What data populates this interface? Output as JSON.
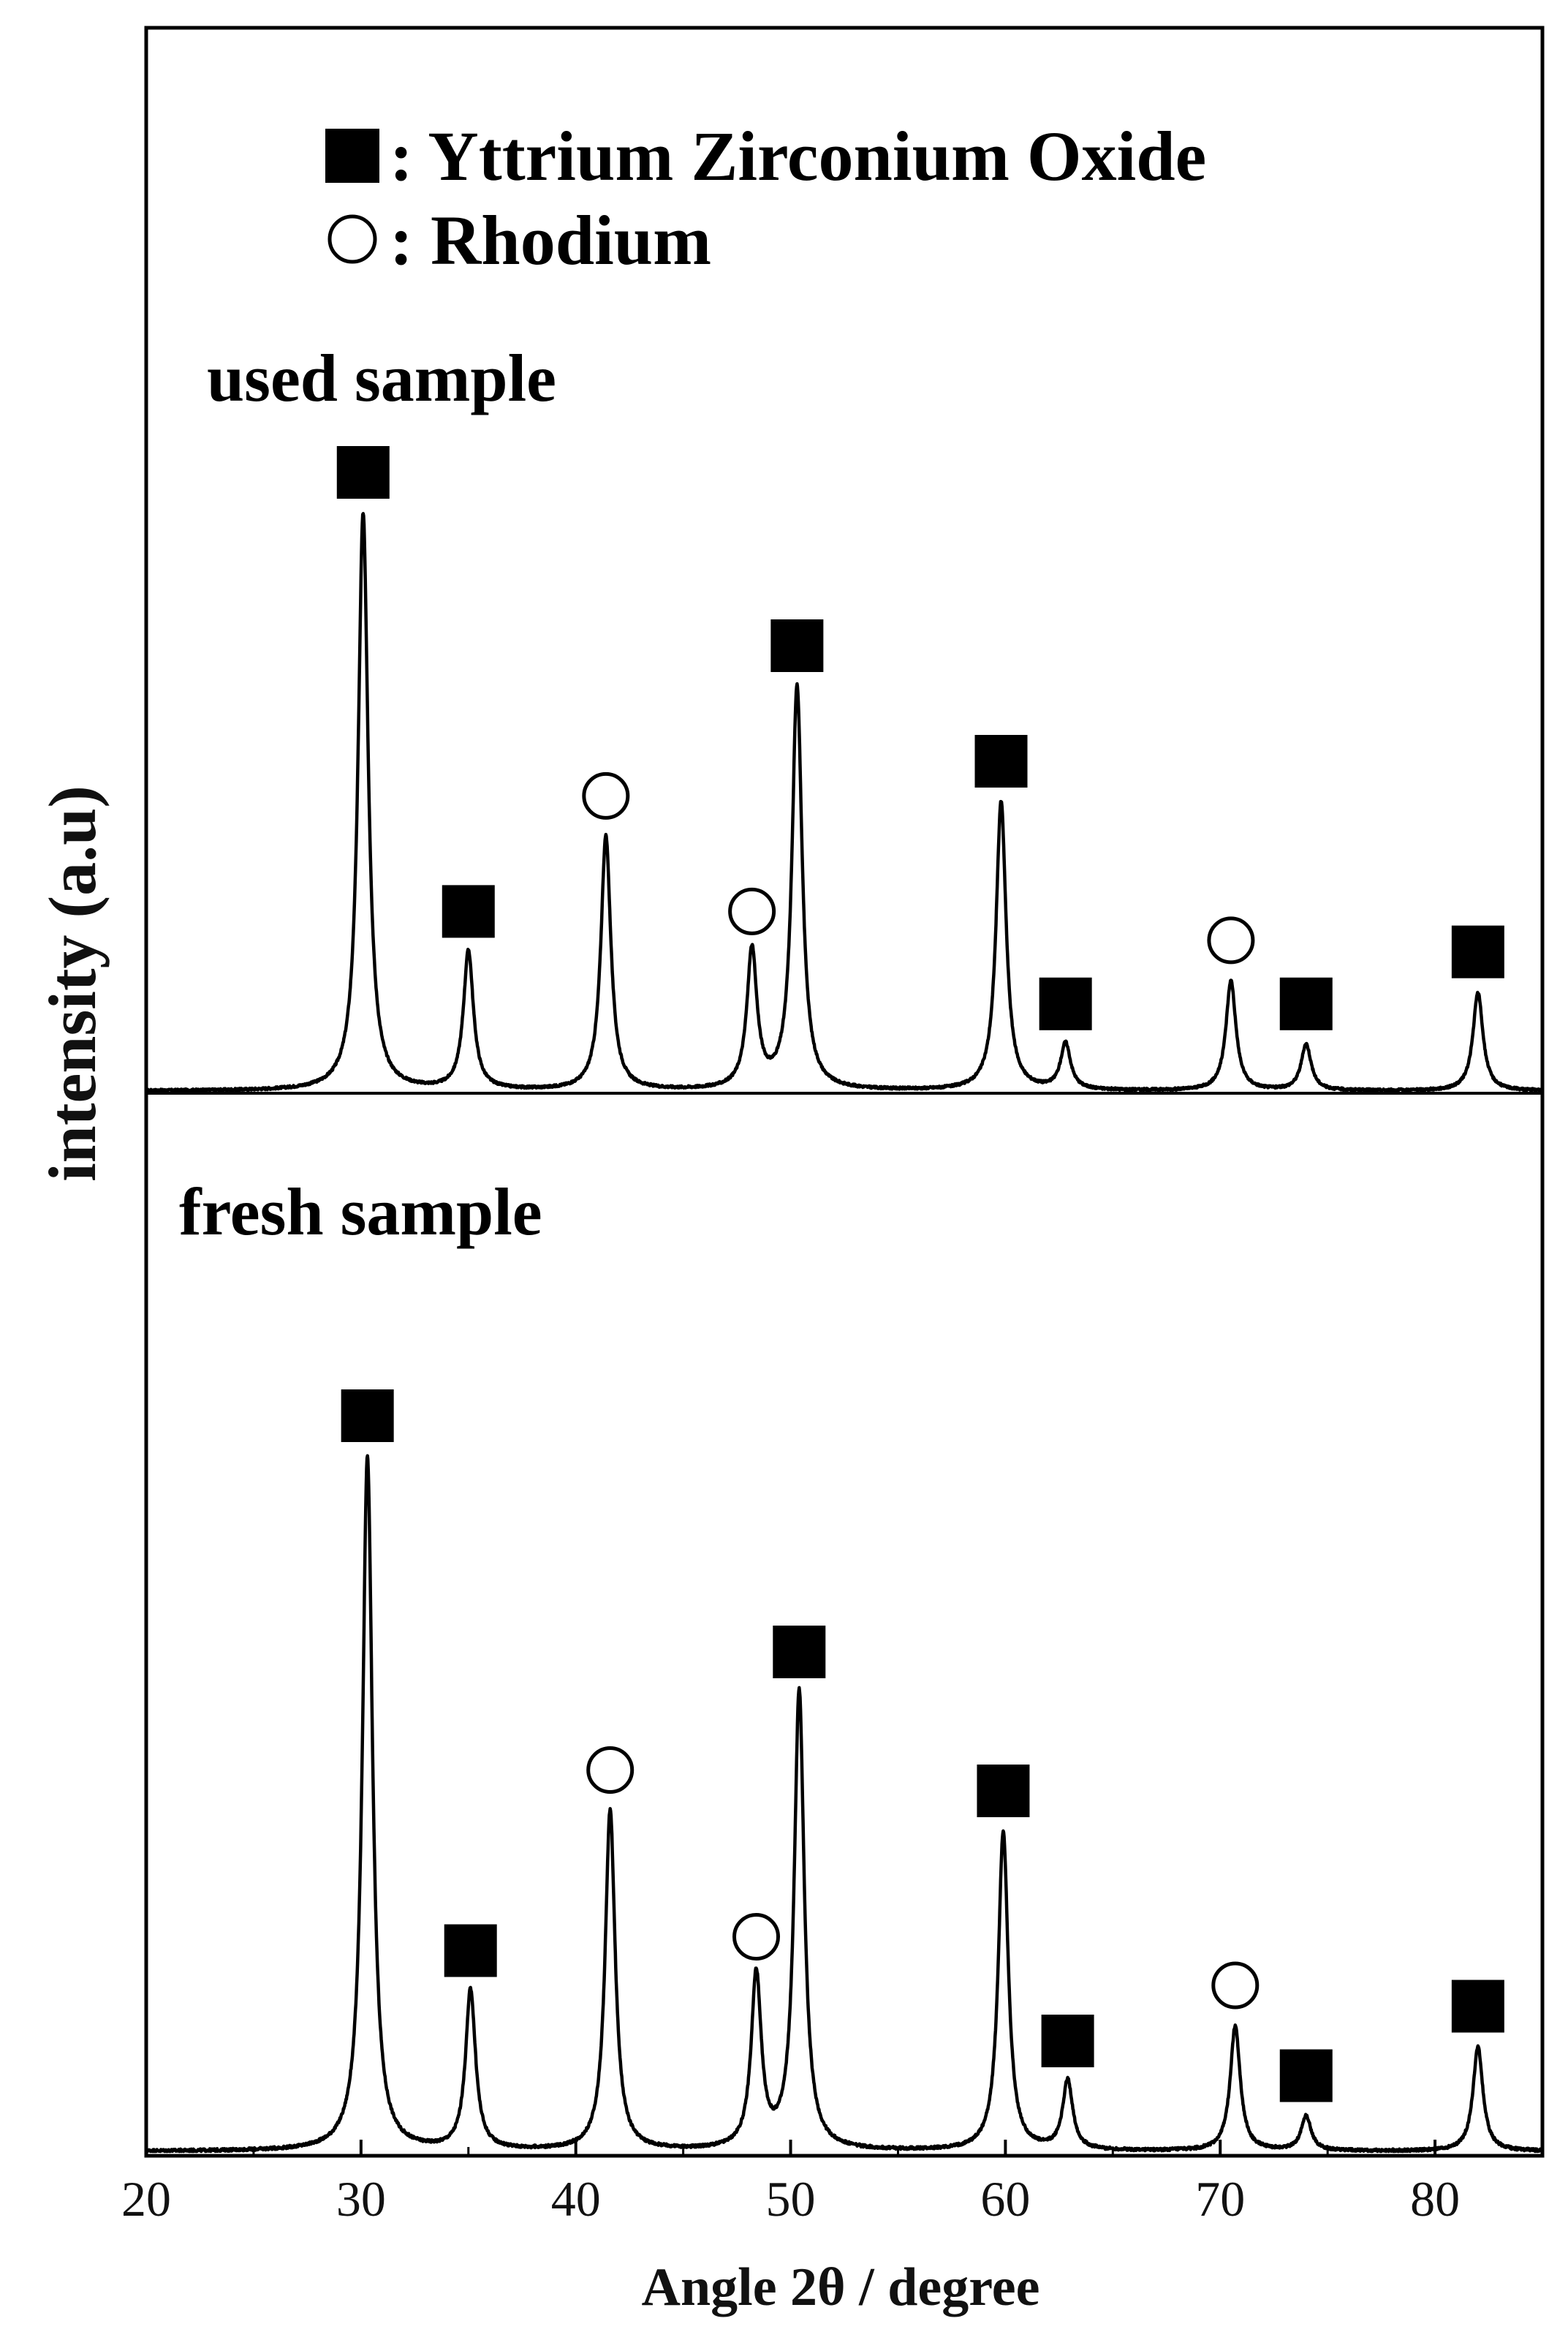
{
  "chart_data": {
    "type": "line",
    "title": "",
    "xlabel": "Angle 2θ / degree",
    "ylabel": "intensity (a.u)",
    "xlim": [
      20,
      85
    ],
    "ylim": [
      0,
      1
    ],
    "xticks": [
      20,
      30,
      40,
      50,
      60,
      70,
      80
    ],
    "grid": false,
    "legend": {
      "placement": "top",
      "entries": [
        {
          "marker": "filled-square",
          "label": ": Yttrium Zirconium Oxide"
        },
        {
          "marker": "open-circle",
          "label": ": Rhodium"
        }
      ]
    },
    "peak_width": 0.28,
    "series": [
      {
        "name": "used sample",
        "label": "used sample",
        "panel": "top",
        "peaks": [
          {
            "x": 30.1,
            "y": 1.0,
            "phase": "Yttrium Zirconium Oxide"
          },
          {
            "x": 35.0,
            "y": 0.24,
            "phase": "Yttrium Zirconium Oxide"
          },
          {
            "x": 41.4,
            "y": 0.44,
            "phase": "Rhodium"
          },
          {
            "x": 48.2,
            "y": 0.24,
            "phase": "Rhodium"
          },
          {
            "x": 50.3,
            "y": 0.7,
            "phase": "Yttrium Zirconium Oxide"
          },
          {
            "x": 59.8,
            "y": 0.5,
            "phase": "Yttrium Zirconium Oxide"
          },
          {
            "x": 62.8,
            "y": 0.08,
            "phase": "Yttrium Zirconium Oxide"
          },
          {
            "x": 70.5,
            "y": 0.19,
            "phase": "Rhodium"
          },
          {
            "x": 74.0,
            "y": 0.08,
            "phase": "Yttrium Zirconium Oxide"
          },
          {
            "x": 82.0,
            "y": 0.17,
            "phase": "Yttrium Zirconium Oxide"
          }
        ]
      },
      {
        "name": "fresh sample",
        "label": "fresh sample",
        "panel": "bottom",
        "peaks": [
          {
            "x": 30.3,
            "y": 1.0,
            "phase": "Yttrium Zirconium Oxide"
          },
          {
            "x": 35.1,
            "y": 0.23,
            "phase": "Yttrium Zirconium Oxide"
          },
          {
            "x": 41.6,
            "y": 0.49,
            "phase": "Rhodium"
          },
          {
            "x": 48.4,
            "y": 0.25,
            "phase": "Rhodium"
          },
          {
            "x": 50.4,
            "y": 0.66,
            "phase": "Yttrium Zirconium Oxide"
          },
          {
            "x": 59.9,
            "y": 0.46,
            "phase": "Yttrium Zirconium Oxide"
          },
          {
            "x": 62.9,
            "y": 0.1,
            "phase": "Yttrium Zirconium Oxide"
          },
          {
            "x": 70.7,
            "y": 0.18,
            "phase": "Rhodium"
          },
          {
            "x": 74.0,
            "y": 0.05,
            "phase": "Yttrium Zirconium Oxide"
          },
          {
            "x": 82.0,
            "y": 0.15,
            "phase": "Yttrium Zirconium Oxide"
          }
        ]
      }
    ]
  }
}
